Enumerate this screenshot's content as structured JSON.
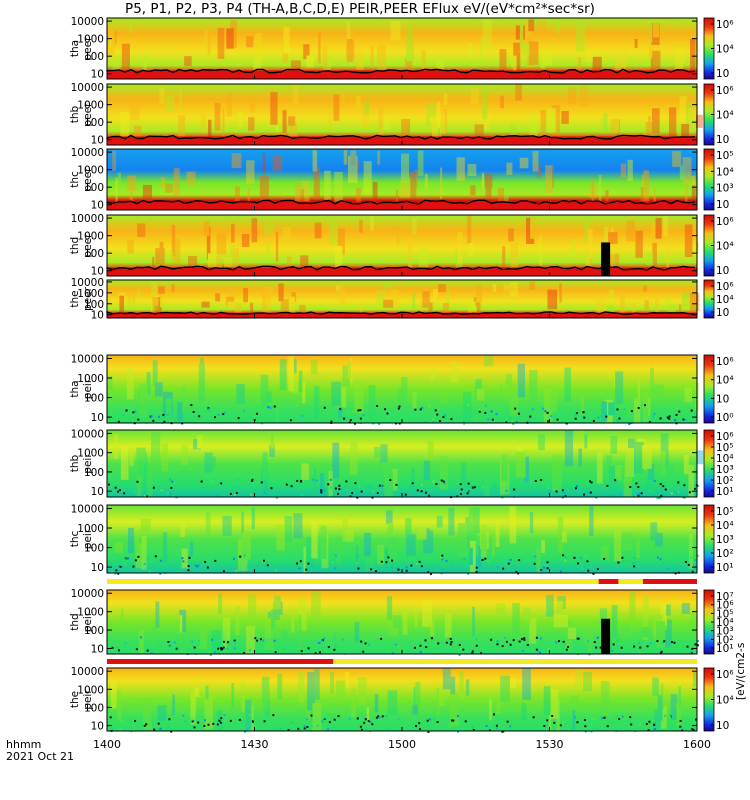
{
  "title": "P5, P1, P2, P3, P4 (TH-A,B,C,D,E) PEIR,PEER EFlux eV/(eV*cm²*sec*sr)",
  "colorbar_label": "[eV/(cm2-s",
  "footer": {
    "line1": "hhmm",
    "line2": "2021 Oct 21"
  },
  "colors": {
    "high": "#ee2010",
    "mid": "#f0e020",
    "low": "#20d060",
    "cold": "#1060e0"
  },
  "chart_data": {
    "type": "heatmap",
    "x_ticks": [
      "1400",
      "1430",
      "1500",
      "1530",
      "1600"
    ],
    "xlim": [
      "14:00",
      "16:00"
    ],
    "y_scale": "log",
    "y_ticks": [
      "10",
      "100",
      "1000",
      "10000"
    ],
    "panels": [
      {
        "name": "tha peer",
        "label1": "tha",
        "label2": "peer",
        "cbar": [
          "10⁶",
          "10⁴",
          "10⁲"
        ],
        "style": "peer",
        "has_line": true
      },
      {
        "name": "thb peer",
        "label1": "thb",
        "label2": "peer",
        "cbar": [
          "10⁶",
          "10⁴",
          "10⁲"
        ],
        "style": "peer",
        "has_line": true
      },
      {
        "name": "thc peer",
        "label1": "thc",
        "label2": "peer",
        "cbar": [
          "10⁵",
          "10⁴",
          "10³",
          "10⁲"
        ],
        "style": "peer_cold",
        "has_line": true
      },
      {
        "name": "thd peer",
        "label1": "thd",
        "label2": "peer",
        "cbar": [
          "10⁶",
          "10⁴",
          "10⁲"
        ],
        "style": "peer",
        "has_line": true,
        "gap_1540": true
      },
      {
        "name": "the peer",
        "label1": "the",
        "label2": "peer",
        "cbar": [
          "10⁶",
          "10⁴",
          "10⁲"
        ],
        "style": "peer",
        "has_line": true
      },
      {
        "name": "tha peir",
        "label1": "tha",
        "label2": "peir",
        "cbar": [
          "10⁶",
          "10⁴",
          "10⁲",
          "10⁰"
        ],
        "style": "peir_hot"
      },
      {
        "name": "thb peir",
        "label1": "thb",
        "label2": "peir",
        "cbar": [
          "10⁶",
          "10⁵",
          "10⁴",
          "10³",
          "10²",
          "10¹"
        ],
        "style": "peir_mix"
      },
      {
        "name": "thc peir",
        "label1": "thc",
        "label2": "peir",
        "cbar": [
          "10⁵",
          "10⁴",
          "10³",
          "10²",
          "10¹"
        ],
        "style": "peir_mix"
      },
      {
        "name": "thd peir",
        "label1": "thd",
        "label2": "peir",
        "cbar": [
          "10⁷",
          "10⁶",
          "10⁵",
          "10⁴",
          "10³",
          "10²",
          "10¹"
        ],
        "style": "peir_hot",
        "gap_1540": true
      },
      {
        "name": "the peir",
        "label1": "the",
        "label2": "peir",
        "cbar": [
          "10⁶",
          "10⁴",
          "10⁲"
        ],
        "style": "peir_hot"
      }
    ],
    "mode_bars": [
      {
        "after_panel": "thc peir",
        "segments": [
          [
            "15:40",
            "15:44"
          ],
          [
            "15:49",
            "16:00"
          ]
        ]
      },
      {
        "after_panel": "thd peir",
        "segments": [
          [
            "14:00",
            "14:46"
          ]
        ]
      }
    ]
  }
}
